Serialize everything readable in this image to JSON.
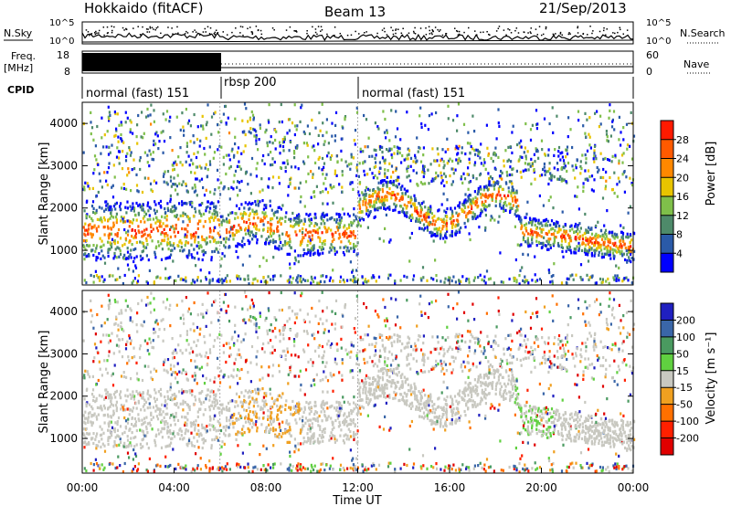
{
  "header": {
    "title": "Hokkaido (fitACF)",
    "beam": "Beam 13",
    "date": "21/Sep/2013"
  },
  "top_panels": {
    "nsky": {
      "left_label": "N.Sky",
      "right_label": "N.Search",
      "ticks": [
        "10^5",
        "10^0"
      ]
    },
    "freq": {
      "left_label_1": "Freq.",
      "left_label_2": "[MHz]",
      "right_label": "Nave",
      "left_ticks": [
        "18",
        "8"
      ],
      "right_ticks": [
        "60",
        "0"
      ]
    },
    "cpid": {
      "label": "CPID"
    }
  },
  "chart_data": [
    {
      "type": "heatmap",
      "panel": "power",
      "ylabel": "Slant Range [km]",
      "colorbar_label": "Power [dB]",
      "x": [
        "00:00",
        "04:00",
        "08:00",
        "12:00",
        "16:00",
        "20:00",
        "00:00"
      ],
      "y_ticks": [
        1000,
        2000,
        3000,
        4000
      ],
      "ylim": [
        180,
        4500
      ],
      "colorbar_ticks": [
        4,
        8,
        12,
        16,
        20,
        24,
        28
      ]
    },
    {
      "type": "heatmap",
      "panel": "velocity",
      "xlabel": "Time UT",
      "ylabel": "Slant Range [km]",
      "colorbar_label": "Velocity [m s⁻¹]",
      "x": [
        "00:00",
        "04:00",
        "08:00",
        "12:00",
        "16:00",
        "20:00",
        "00:00"
      ],
      "y_ticks": [
        1000,
        2000,
        3000,
        4000
      ],
      "ylim": [
        180,
        4500
      ],
      "colorbar_ticks": [
        200,
        100,
        50,
        15,
        -15,
        -50,
        -100,
        -200
      ]
    }
  ],
  "cpid_segments": [
    {
      "label": "normal (fast) 151",
      "start_hour": 0
    },
    {
      "label": "rbsp 200",
      "start_hour": 6
    },
    {
      "label": "normal (fast) 151",
      "start_hour": 12
    }
  ],
  "colors": {
    "power_scale": [
      "#0000ff",
      "#2a5aa8",
      "#4e8a6a",
      "#7fbf4a",
      "#e8c400",
      "#ff8800",
      "#ff5a00",
      "#ff1a00"
    ],
    "velocity_scale": [
      "#2020c0",
      "#3a66a8",
      "#4a9a60",
      "#60d040",
      "#c8c8c0",
      "#f0a020",
      "#ff7000",
      "#ff2000",
      "#e00000"
    ]
  }
}
